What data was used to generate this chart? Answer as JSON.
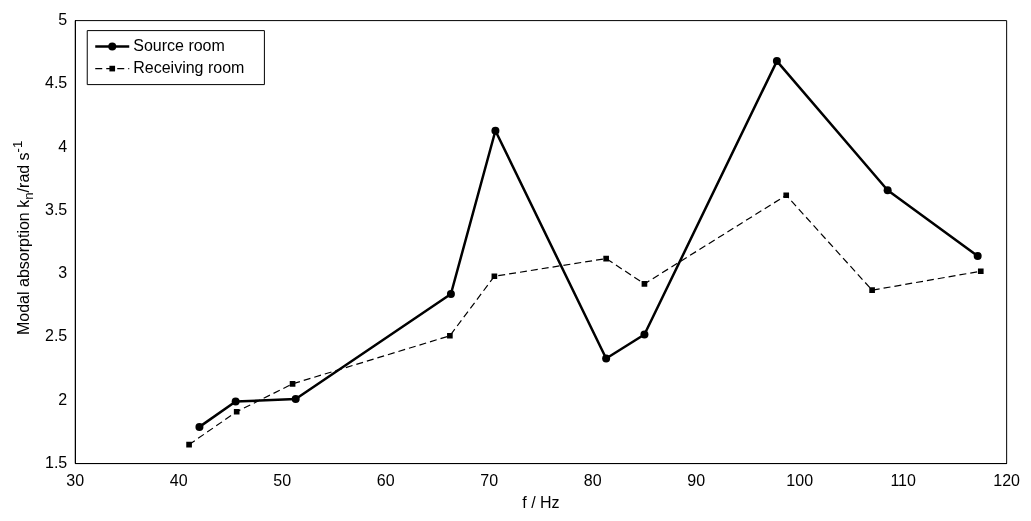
{
  "chart_data": {
    "type": "line",
    "xlabel": "f / Hz",
    "ylabel": "Modal absorption k$_{n}$/rad s$^{-1}$",
    "xlim": [
      30,
      120
    ],
    "xticks": [
      30,
      40,
      50,
      60,
      70,
      80,
      90,
      100,
      110,
      120
    ],
    "ylim": [
      1.5,
      5
    ],
    "yticks": [
      1.5,
      2,
      2.5,
      3,
      3.5,
      4,
      4.5,
      5
    ],
    "grid": false,
    "legend": "top left",
    "series": [
      {
        "name": "Source room",
        "color": "#000000",
        "marker": "circle",
        "line_style": "solid",
        "x": [
          42,
          45.5,
          51.3,
          66.3,
          70.6,
          81.3,
          85,
          97.8,
          108.5,
          117.2
        ],
        "values": [
          1.79,
          1.99,
          2.01,
          2.84,
          4.13,
          2.33,
          2.52,
          4.68,
          3.66,
          3.14
        ]
      },
      {
        "name": "Receiving room",
        "color": "#000000",
        "marker": "square",
        "line_style": "dashed",
        "x": [
          41,
          45.6,
          51,
          66.2,
          70.5,
          81.3,
          85,
          98.7,
          107,
          117.5
        ],
        "values": [
          1.65,
          1.91,
          2.13,
          2.51,
          2.98,
          3.12,
          2.92,
          3.62,
          2.87,
          3.02
        ]
      }
    ]
  }
}
